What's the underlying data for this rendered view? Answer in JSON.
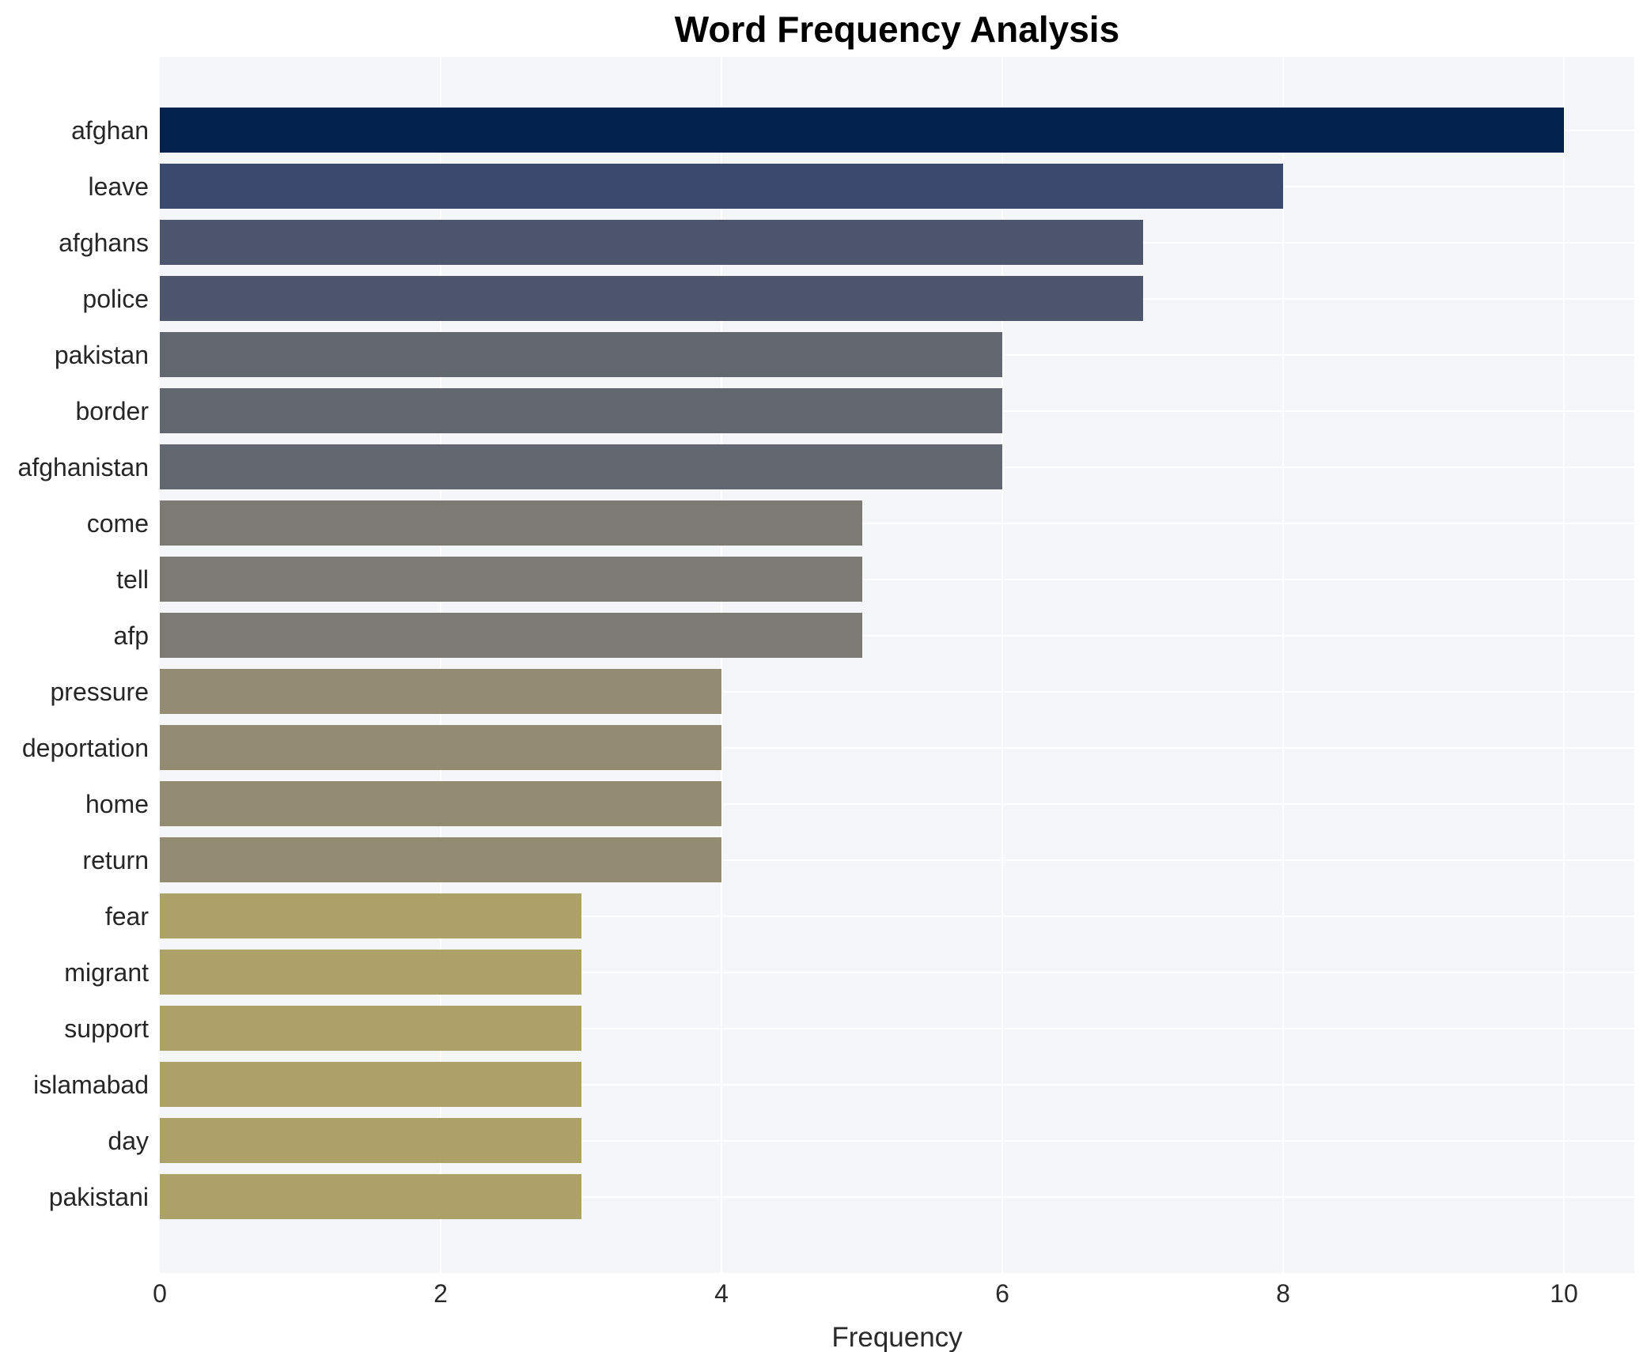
{
  "chart_data": {
    "type": "bar",
    "orientation": "horizontal",
    "title": "Word Frequency Analysis",
    "xlabel": "Frequency",
    "ylabel": "",
    "categories": [
      "afghan",
      "leave",
      "afghans",
      "police",
      "pakistan",
      "border",
      "afghanistan",
      "come",
      "tell",
      "afp",
      "pressure",
      "deportation",
      "home",
      "return",
      "fear",
      "migrant",
      "support",
      "islamabad",
      "day",
      "pakistani"
    ],
    "values": [
      10,
      8,
      7,
      7,
      6,
      6,
      6,
      5,
      5,
      5,
      4,
      4,
      4,
      4,
      3,
      3,
      3,
      3,
      3,
      3
    ],
    "bar_colors": [
      "#03234e",
      "#3a4a6e",
      "#4d566d",
      "#4d566d",
      "#636770",
      "#636770",
      "#636770",
      "#7b7a74",
      "#7b7a74",
      "#7b7a74",
      "#938b72",
      "#938b72",
      "#938b72",
      "#938b72",
      "#aba169",
      "#aba169",
      "#aba169",
      "#aba169",
      "#aba169",
      "#aba169"
    ],
    "xlim": [
      0,
      10.5
    ],
    "x_ticks": [
      0,
      2,
      4,
      6,
      8,
      10
    ],
    "grid": true,
    "legend_position": "none",
    "plot_background": "#f5f6f8",
    "gridline_color": "#ffffff",
    "colorscale": "cividis"
  }
}
